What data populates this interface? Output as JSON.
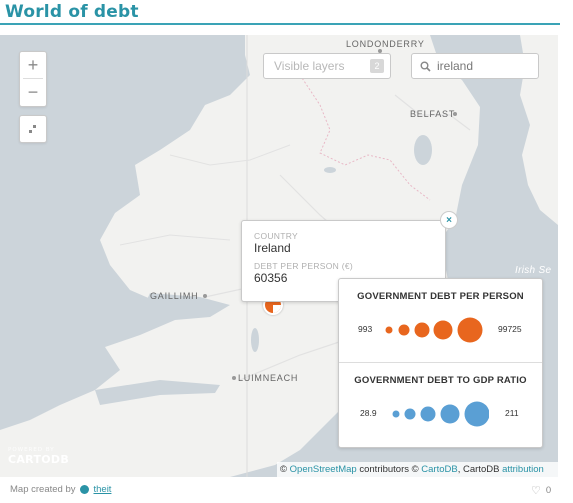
{
  "page": {
    "title": "World of debt"
  },
  "map": {
    "zoom_in": "+",
    "zoom_out": "−",
    "layers": {
      "placeholder": "Visible layers",
      "count": "2"
    },
    "search": {
      "value": "ireland"
    },
    "place_labels": {
      "londonderry": "LONDONDERRY",
      "belfast": "BELFAST",
      "gaillimh": "GAILLIMH",
      "luimneach": "LUIMNEACH",
      "irish_sea": "Irish Se"
    },
    "popup": {
      "country_label": "COUNTRY",
      "country_value": "Ireland",
      "debt_label": "DEBT PER PERSON (€)",
      "debt_value": "60356",
      "close_icon": "×"
    },
    "legend": {
      "debt_per_person": {
        "title": "GOVERNMENT DEBT PER PERSON",
        "min": "993",
        "max": "99725",
        "color": "#e8661e"
      },
      "debt_to_gdp": {
        "title": "GOVERNMENT DEBT TO GDP RATIO",
        "min": "28.9",
        "max": "211",
        "color": "#5a9fd4"
      }
    },
    "credit": {
      "powered_by": "POWERED BY",
      "brand": "CARTODB"
    },
    "attribution": {
      "symbol": "©",
      "osm": "OpenStreetMap",
      "contributors": "contributors ©",
      "cartodb": "CartoDB",
      "cartodb_plain": ", CartoDB",
      "attribution_link": "attribution"
    }
  },
  "footer": {
    "created_by": "Map created by",
    "author": "theit",
    "likes": "0"
  },
  "colors": {
    "accent": "#2a93a6",
    "water": "#ccd4da",
    "land": "#f2f2f0",
    "orange": "#e8661e",
    "blue": "#5a9fd4"
  }
}
